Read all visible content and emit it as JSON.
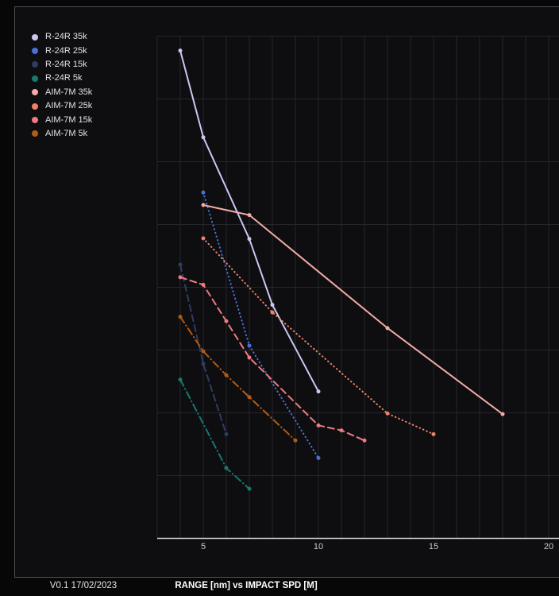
{
  "footer": {
    "version": "V0.1 17/02/2023",
    "title": "RANGE [nm] vs IMPACT SPD [M]"
  },
  "legend": {
    "position": "top-left",
    "items": [
      {
        "label": "R-24R 35k",
        "color": "#c9c7f0"
      },
      {
        "label": "R-24R 25k",
        "color": "#4a70d6"
      },
      {
        "label": "R-24R 15k",
        "color": "#2f3d5e"
      },
      {
        "label": "R-24R 5k",
        "color": "#177a6d"
      },
      {
        "label": "AIM-7M 35k",
        "color": "#f2aba7"
      },
      {
        "label": "AIM-7M 25k",
        "color": "#ee8266"
      },
      {
        "label": "AIM-7M 15k",
        "color": "#ee7a82"
      },
      {
        "label": "AIM-7M 5k",
        "color": "#b25b15"
      }
    ]
  },
  "chart_data": {
    "type": "line",
    "title": "RANGE [nm] vs IMPACT SPD [M]",
    "xlabel": "RANGE [nm]",
    "ylabel": "IMPACT SPD [M]",
    "grid": true,
    "legend_position": "top-left",
    "xlim": [
      3,
      20.5
    ],
    "x_ticks": [
      5,
      10,
      15,
      20
    ],
    "x_tick_labels": [
      "5",
      "10",
      "15",
      "20"
    ],
    "y_axis_note": "y axis has no visible tick labels; y values below are in gridline units (0 = x-axis baseline, 8 = top gridline)",
    "ylim_grid_units": [
      0,
      8
    ],
    "series": [
      {
        "name": "R-24R 35k",
        "color": "#c9c7f0",
        "style": "solid",
        "x": [
          4,
          5,
          7,
          8,
          10
        ],
        "y": [
          7.77,
          6.39,
          4.77,
          3.72,
          2.34
        ]
      },
      {
        "name": "R-24R 25k",
        "color": "#4a70d6",
        "style": "dotted",
        "x": [
          5,
          7,
          10
        ],
        "y": [
          5.51,
          3.07,
          1.28
        ]
      },
      {
        "name": "R-24R 15k",
        "color": "#2f3d5e",
        "style": "dashed",
        "x": [
          4,
          5,
          6
        ],
        "y": [
          4.36,
          2.78,
          1.66
        ]
      },
      {
        "name": "R-24R 5k",
        "color": "#177a6d",
        "style": "dashdot",
        "x": [
          4,
          6,
          7
        ],
        "y": [
          2.53,
          1.12,
          0.79
        ]
      },
      {
        "name": "AIM-7M 35k",
        "color": "#f2aba7",
        "style": "solid",
        "x": [
          5,
          7,
          13,
          18
        ],
        "y": [
          5.31,
          5.15,
          3.35,
          1.98
        ]
      },
      {
        "name": "AIM-7M 25k",
        "color": "#ee8266",
        "style": "dotted",
        "x": [
          5,
          8,
          13,
          15
        ],
        "y": [
          4.78,
          3.6,
          1.99,
          1.66
        ]
      },
      {
        "name": "AIM-7M 15k",
        "color": "#ee7a82",
        "style": "dashed",
        "x": [
          4,
          5,
          6,
          7,
          10,
          11,
          12
        ],
        "y": [
          4.16,
          4.04,
          3.46,
          2.88,
          1.8,
          1.72,
          1.56
        ]
      },
      {
        "name": "AIM-7M 5k",
        "color": "#b25b15",
        "style": "dashdot",
        "x": [
          4,
          5,
          6,
          7,
          9
        ],
        "y": [
          3.53,
          2.98,
          2.6,
          2.25,
          1.56
        ]
      }
    ]
  }
}
